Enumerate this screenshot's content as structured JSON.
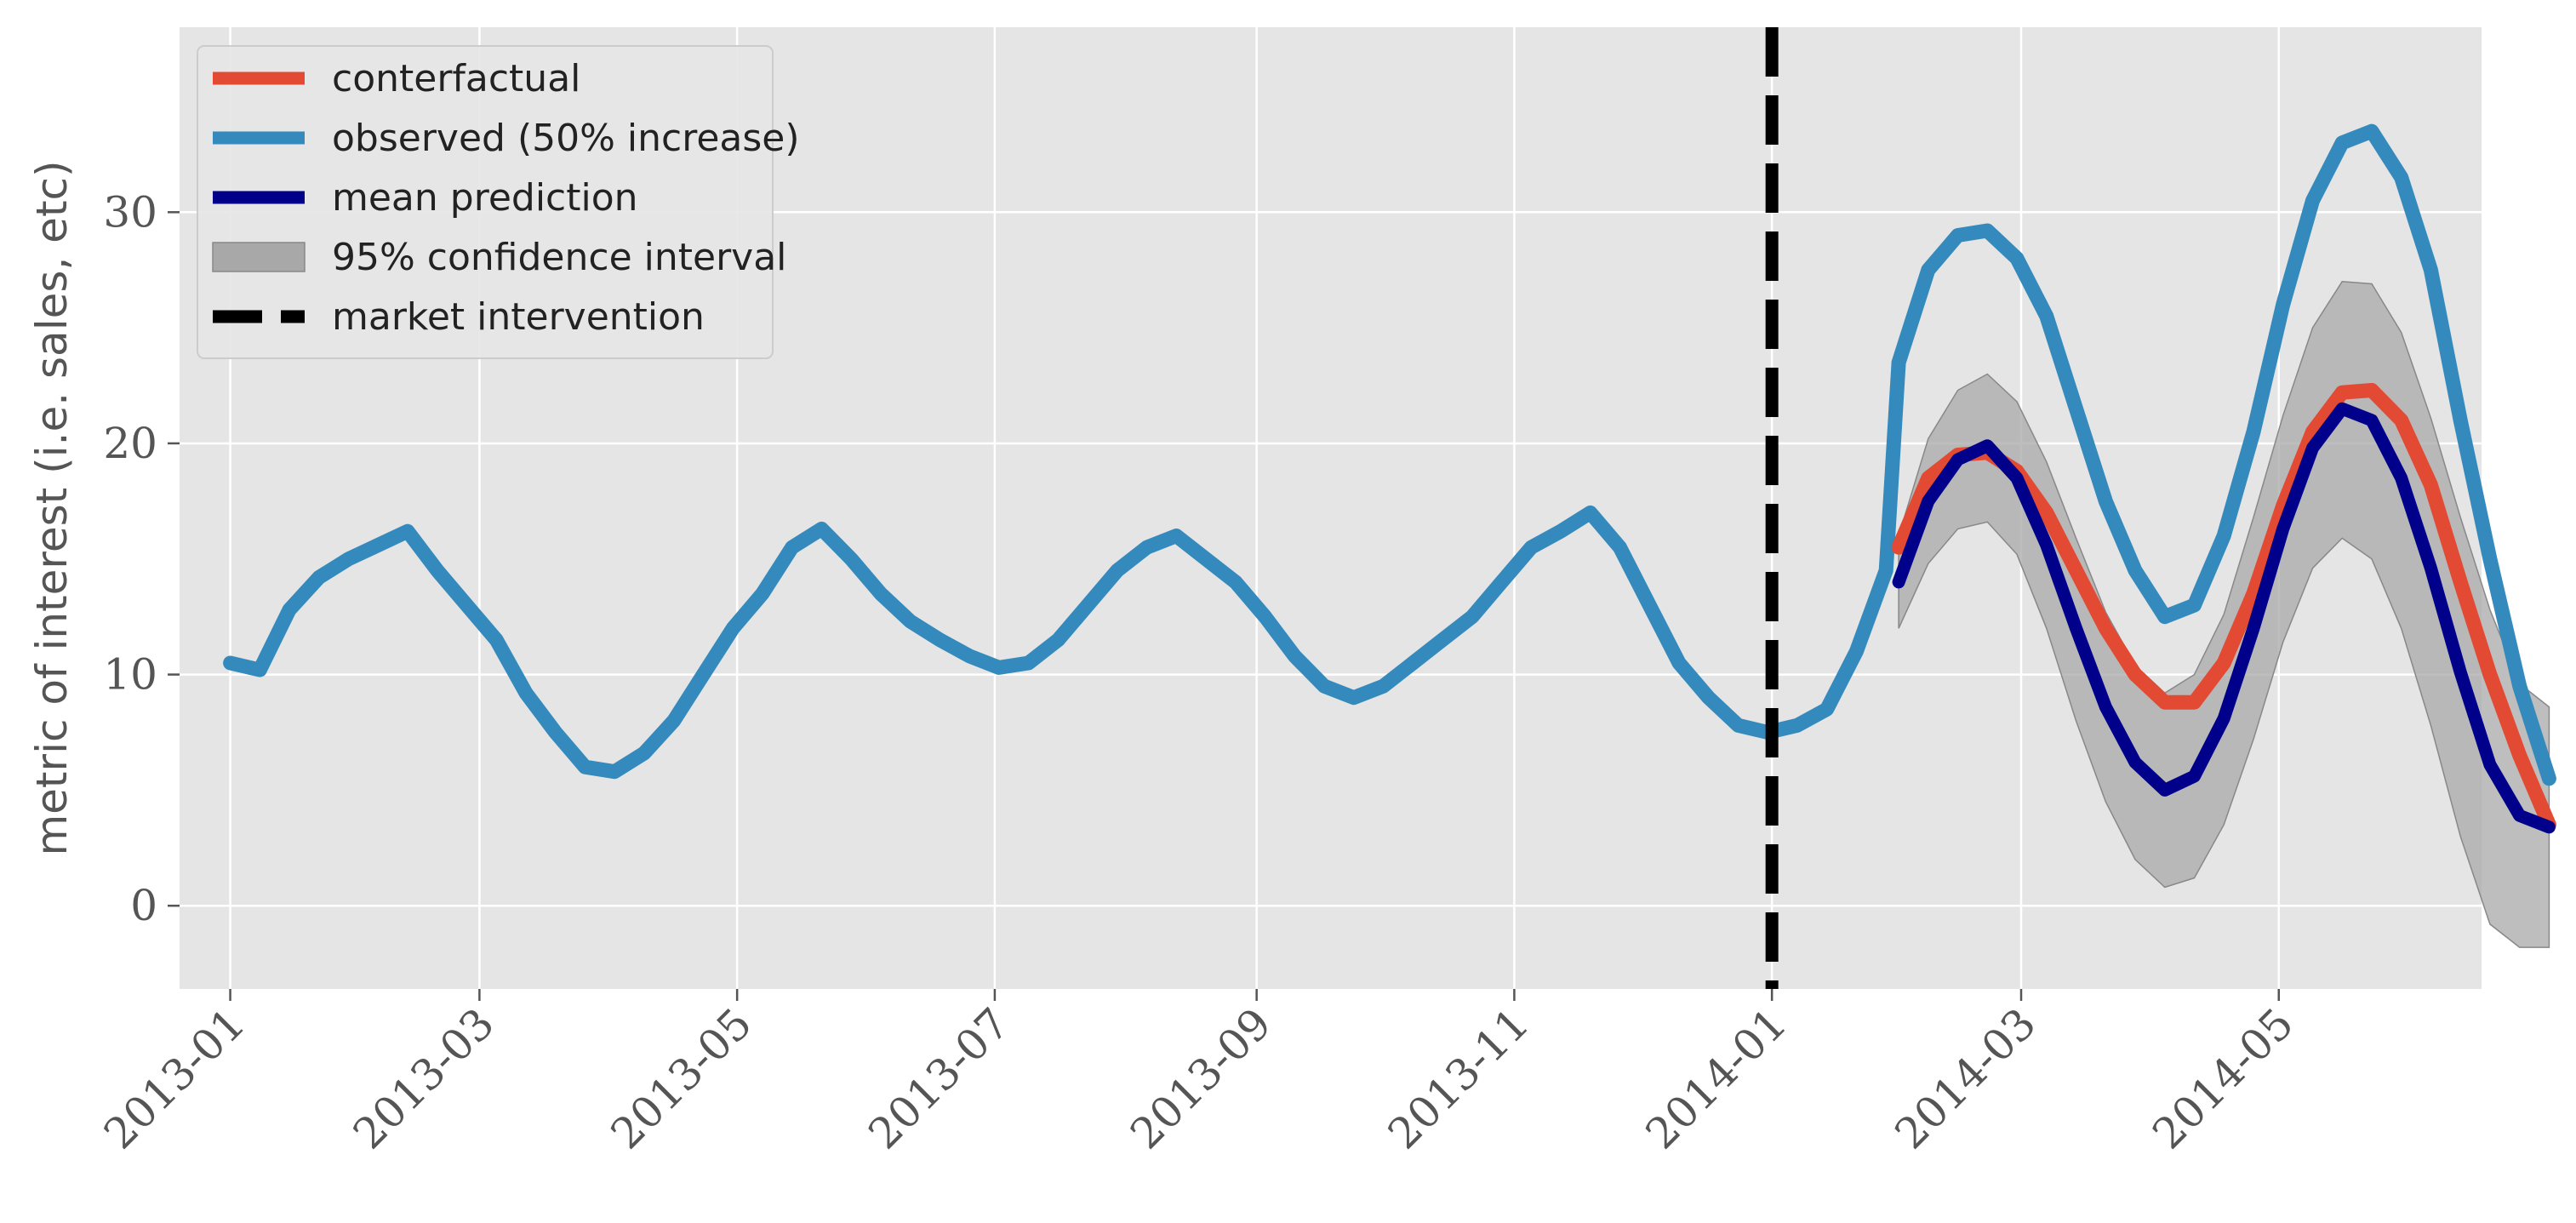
{
  "chart_data": {
    "type": "line",
    "title": "",
    "xlabel": "",
    "ylabel": "metric of interest (i.e. sales, etc)",
    "x_ticks": [
      "2013-01",
      "2013-03",
      "2013-05",
      "2013-07",
      "2013-09",
      "2013-11",
      "2014-01",
      "2014-03",
      "2014-05"
    ],
    "y_ticks": [
      0,
      10,
      20,
      30
    ],
    "xlim": [
      "2012-12-20",
      "2014-06-18"
    ],
    "ylim": [
      -3.6,
      38
    ],
    "grid": true,
    "legend_position": "top-left",
    "intervention_date": "2014-01-01",
    "colors": {
      "background": "#e5e5e5",
      "grid": "#ffffff",
      "counterfactual": "#e24a33",
      "observed": "#348abd",
      "mean_prediction": "#00008b",
      "confidence_interval": "#a8a8a8",
      "intervention": "#000000"
    },
    "series": [
      {
        "name": "observed (50% increase)",
        "role": "observed",
        "points": [
          [
            "2013-01-01",
            10.5
          ],
          [
            "2013-01-08",
            10.2
          ],
          [
            "2013-01-15",
            12.8
          ],
          [
            "2013-01-22",
            14.2
          ],
          [
            "2013-01-29",
            15.0
          ],
          [
            "2013-02-05",
            15.6
          ],
          [
            "2013-02-12",
            16.2
          ],
          [
            "2013-02-19",
            14.5
          ],
          [
            "2013-02-26",
            13.0
          ],
          [
            "2013-03-05",
            11.5
          ],
          [
            "2013-03-12",
            9.2
          ],
          [
            "2013-03-19",
            7.5
          ],
          [
            "2013-03-26",
            6.0
          ],
          [
            "2013-04-02",
            5.8
          ],
          [
            "2013-04-09",
            6.6
          ],
          [
            "2013-04-16",
            8.0
          ],
          [
            "2013-04-23",
            10.0
          ],
          [
            "2013-04-30",
            12.0
          ],
          [
            "2013-05-07",
            13.5
          ],
          [
            "2013-05-14",
            15.5
          ],
          [
            "2013-05-21",
            16.3
          ],
          [
            "2013-05-28",
            15.0
          ],
          [
            "2013-06-04",
            13.5
          ],
          [
            "2013-06-11",
            12.3
          ],
          [
            "2013-06-18",
            11.5
          ],
          [
            "2013-06-25",
            10.8
          ],
          [
            "2013-07-02",
            10.3
          ],
          [
            "2013-07-09",
            10.5
          ],
          [
            "2013-07-16",
            11.5
          ],
          [
            "2013-07-23",
            13.0
          ],
          [
            "2013-07-30",
            14.5
          ],
          [
            "2013-08-06",
            15.5
          ],
          [
            "2013-08-13",
            16.0
          ],
          [
            "2013-08-20",
            15.0
          ],
          [
            "2013-08-27",
            14.0
          ],
          [
            "2013-09-03",
            12.5
          ],
          [
            "2013-09-10",
            10.8
          ],
          [
            "2013-09-17",
            9.5
          ],
          [
            "2013-09-24",
            9.0
          ],
          [
            "2013-10-01",
            9.5
          ],
          [
            "2013-10-08",
            10.5
          ],
          [
            "2013-10-15",
            11.5
          ],
          [
            "2013-10-22",
            12.5
          ],
          [
            "2013-10-29",
            14.0
          ],
          [
            "2013-11-05",
            15.5
          ],
          [
            "2013-11-12",
            16.2
          ],
          [
            "2013-11-19",
            17.0
          ],
          [
            "2013-11-26",
            15.5
          ],
          [
            "2013-12-03",
            13.0
          ],
          [
            "2013-12-10",
            10.5
          ],
          [
            "2013-12-17",
            9.0
          ],
          [
            "2013-12-24",
            7.8
          ],
          [
            "2013-12-31",
            7.5
          ],
          [
            "2014-01-07",
            7.8
          ],
          [
            "2014-01-14",
            8.5
          ],
          [
            "2014-01-21",
            11.0
          ],
          [
            "2014-01-28",
            14.5
          ],
          [
            "2014-01-31",
            23.5
          ],
          [
            "2014-02-07",
            27.5
          ],
          [
            "2014-02-14",
            29.0
          ],
          [
            "2014-02-21",
            29.2
          ],
          [
            "2014-02-28",
            28.0
          ],
          [
            "2014-03-07",
            25.5
          ],
          [
            "2014-03-14",
            21.5
          ],
          [
            "2014-03-21",
            17.5
          ],
          [
            "2014-03-28",
            14.5
          ],
          [
            "2014-04-04",
            12.5
          ],
          [
            "2014-04-11",
            13.0
          ],
          [
            "2014-04-18",
            16.0
          ],
          [
            "2014-04-25",
            20.5
          ],
          [
            "2014-05-02",
            26.0
          ],
          [
            "2014-05-09",
            30.5
          ],
          [
            "2014-05-16",
            33.0
          ],
          [
            "2014-05-23",
            33.5
          ],
          [
            "2014-05-30",
            31.5
          ],
          [
            "2014-06-06",
            27.5
          ],
          [
            "2014-06-13",
            21.0
          ],
          [
            "2014-06-20",
            15.0
          ],
          [
            "2014-06-27",
            9.5
          ],
          [
            "2014-07-04",
            5.5
          ]
        ]
      },
      {
        "name": "conterfactual",
        "role": "counterfactual",
        "points": [
          [
            "2014-01-31",
            15.5
          ],
          [
            "2014-02-07",
            18.5
          ],
          [
            "2014-02-14",
            19.5
          ],
          [
            "2014-02-21",
            19.6
          ],
          [
            "2014-02-28",
            18.8
          ],
          [
            "2014-03-07",
            17.0
          ],
          [
            "2014-03-14",
            14.5
          ],
          [
            "2014-03-21",
            12.0
          ],
          [
            "2014-03-28",
            10.0
          ],
          [
            "2014-04-04",
            8.8
          ],
          [
            "2014-04-11",
            8.8
          ],
          [
            "2014-04-18",
            10.5
          ],
          [
            "2014-04-25",
            13.5
          ],
          [
            "2014-05-02",
            17.3
          ],
          [
            "2014-05-09",
            20.5
          ],
          [
            "2014-05-16",
            22.2
          ],
          [
            "2014-05-23",
            22.3
          ],
          [
            "2014-05-30",
            21.0
          ],
          [
            "2014-06-06",
            18.2
          ],
          [
            "2014-06-13",
            14.0
          ],
          [
            "2014-06-20",
            10.0
          ],
          [
            "2014-06-27",
            6.5
          ],
          [
            "2014-07-04",
            3.5
          ]
        ]
      },
      {
        "name": "mean prediction",
        "role": "mean_prediction",
        "points": [
          [
            "2014-01-31",
            14.0
          ],
          [
            "2014-02-07",
            17.5
          ],
          [
            "2014-02-14",
            19.3
          ],
          [
            "2014-02-21",
            19.9
          ],
          [
            "2014-02-28",
            18.5
          ],
          [
            "2014-03-07",
            15.6
          ],
          [
            "2014-03-14",
            12.0
          ],
          [
            "2014-03-21",
            8.6
          ],
          [
            "2014-03-28",
            6.2
          ],
          [
            "2014-04-04",
            5.0
          ],
          [
            "2014-04-11",
            5.6
          ],
          [
            "2014-04-18",
            8.1
          ],
          [
            "2014-04-25",
            12.0
          ],
          [
            "2014-05-02",
            16.3
          ],
          [
            "2014-05-09",
            19.8
          ],
          [
            "2014-05-16",
            21.5
          ],
          [
            "2014-05-23",
            21.0
          ],
          [
            "2014-05-30",
            18.5
          ],
          [
            "2014-06-06",
            14.6
          ],
          [
            "2014-06-13",
            10.1
          ],
          [
            "2014-06-20",
            6.1
          ],
          [
            "2014-06-27",
            3.9
          ],
          [
            "2014-07-04",
            3.4
          ]
        ]
      }
    ],
    "confidence_interval": {
      "name": "95% confidence interval",
      "x": [
        "2014-01-31",
        "2014-02-07",
        "2014-02-14",
        "2014-02-21",
        "2014-02-28",
        "2014-03-07",
        "2014-03-14",
        "2014-03-21",
        "2014-03-28",
        "2014-04-04",
        "2014-04-11",
        "2014-04-18",
        "2014-04-25",
        "2014-05-02",
        "2014-05-09",
        "2014-05-16",
        "2014-05-23",
        "2014-05-30",
        "2014-06-06",
        "2014-06-13",
        "2014-06-20",
        "2014-06-27",
        "2014-07-04"
      ],
      "lower": [
        12.0,
        14.8,
        16.3,
        16.6,
        15.2,
        12.0,
        8.0,
        4.5,
        2.0,
        0.8,
        1.2,
        3.5,
        7.2,
        11.4,
        14.6,
        15.9,
        15.0,
        12.0,
        7.8,
        3.0,
        -0.8,
        -1.8,
        -1.8
      ],
      "upper": [
        16.0,
        20.2,
        22.3,
        23.0,
        21.8,
        19.2,
        15.9,
        12.7,
        10.4,
        9.2,
        10.0,
        12.6,
        16.8,
        21.2,
        25.0,
        27.0,
        26.9,
        24.8,
        21.1,
        16.8,
        12.8,
        9.6,
        8.6
      ]
    },
    "legend": [
      {
        "label": "conterfactual",
        "style": "counterfactual"
      },
      {
        "label": "observed (50% increase)",
        "style": "observed"
      },
      {
        "label": "mean prediction",
        "style": "mean_prediction"
      },
      {
        "label": "95% confidence interval",
        "style": "confidence_interval"
      },
      {
        "label": "market intervention",
        "style": "intervention"
      }
    ]
  }
}
